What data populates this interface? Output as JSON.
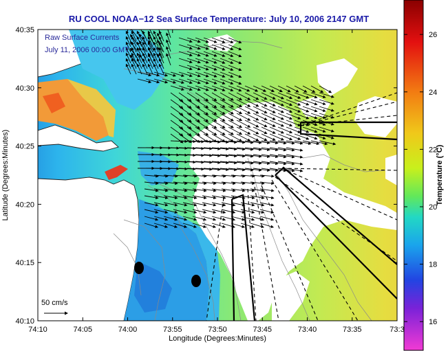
{
  "title": "RU COOL  NOAA−12  Sea Surface Temperature:  July 10, 2006 2147 GMT",
  "overlay_text": {
    "line1": "Raw Surface Currents",
    "line2": "July 11, 2006 00:00 GMT"
  },
  "axes": {
    "xlabel": "Longitude (Degrees:Minutes)",
    "ylabel": "Latitude (Degrees:Minutes)",
    "x_ticks": [
      "74:10",
      "74:05",
      "74:00",
      "73:55",
      "73:50",
      "73:45",
      "73:40",
      "73:35",
      "73:3"
    ],
    "y_ticks": [
      "40:35",
      "40:30",
      "40:25",
      "40:20",
      "40:15",
      "40:10"
    ]
  },
  "scale_arrow_label": "50 cm/s",
  "colorbar": {
    "label": "Temperature (°C)",
    "ticks": [
      "26",
      "24",
      "22",
      "20",
      "18",
      "16"
    ],
    "tick_values": [
      26,
      24,
      22,
      20,
      18,
      16
    ],
    "range": [
      15,
      27.2
    ]
  },
  "colors": {
    "title": "#1a1aa8",
    "overlay_text": "#2a2a9a",
    "land": "#ffffff",
    "cloud": "#ffffff",
    "coast": "#202020",
    "contour": "#8a8a8a"
  }
}
